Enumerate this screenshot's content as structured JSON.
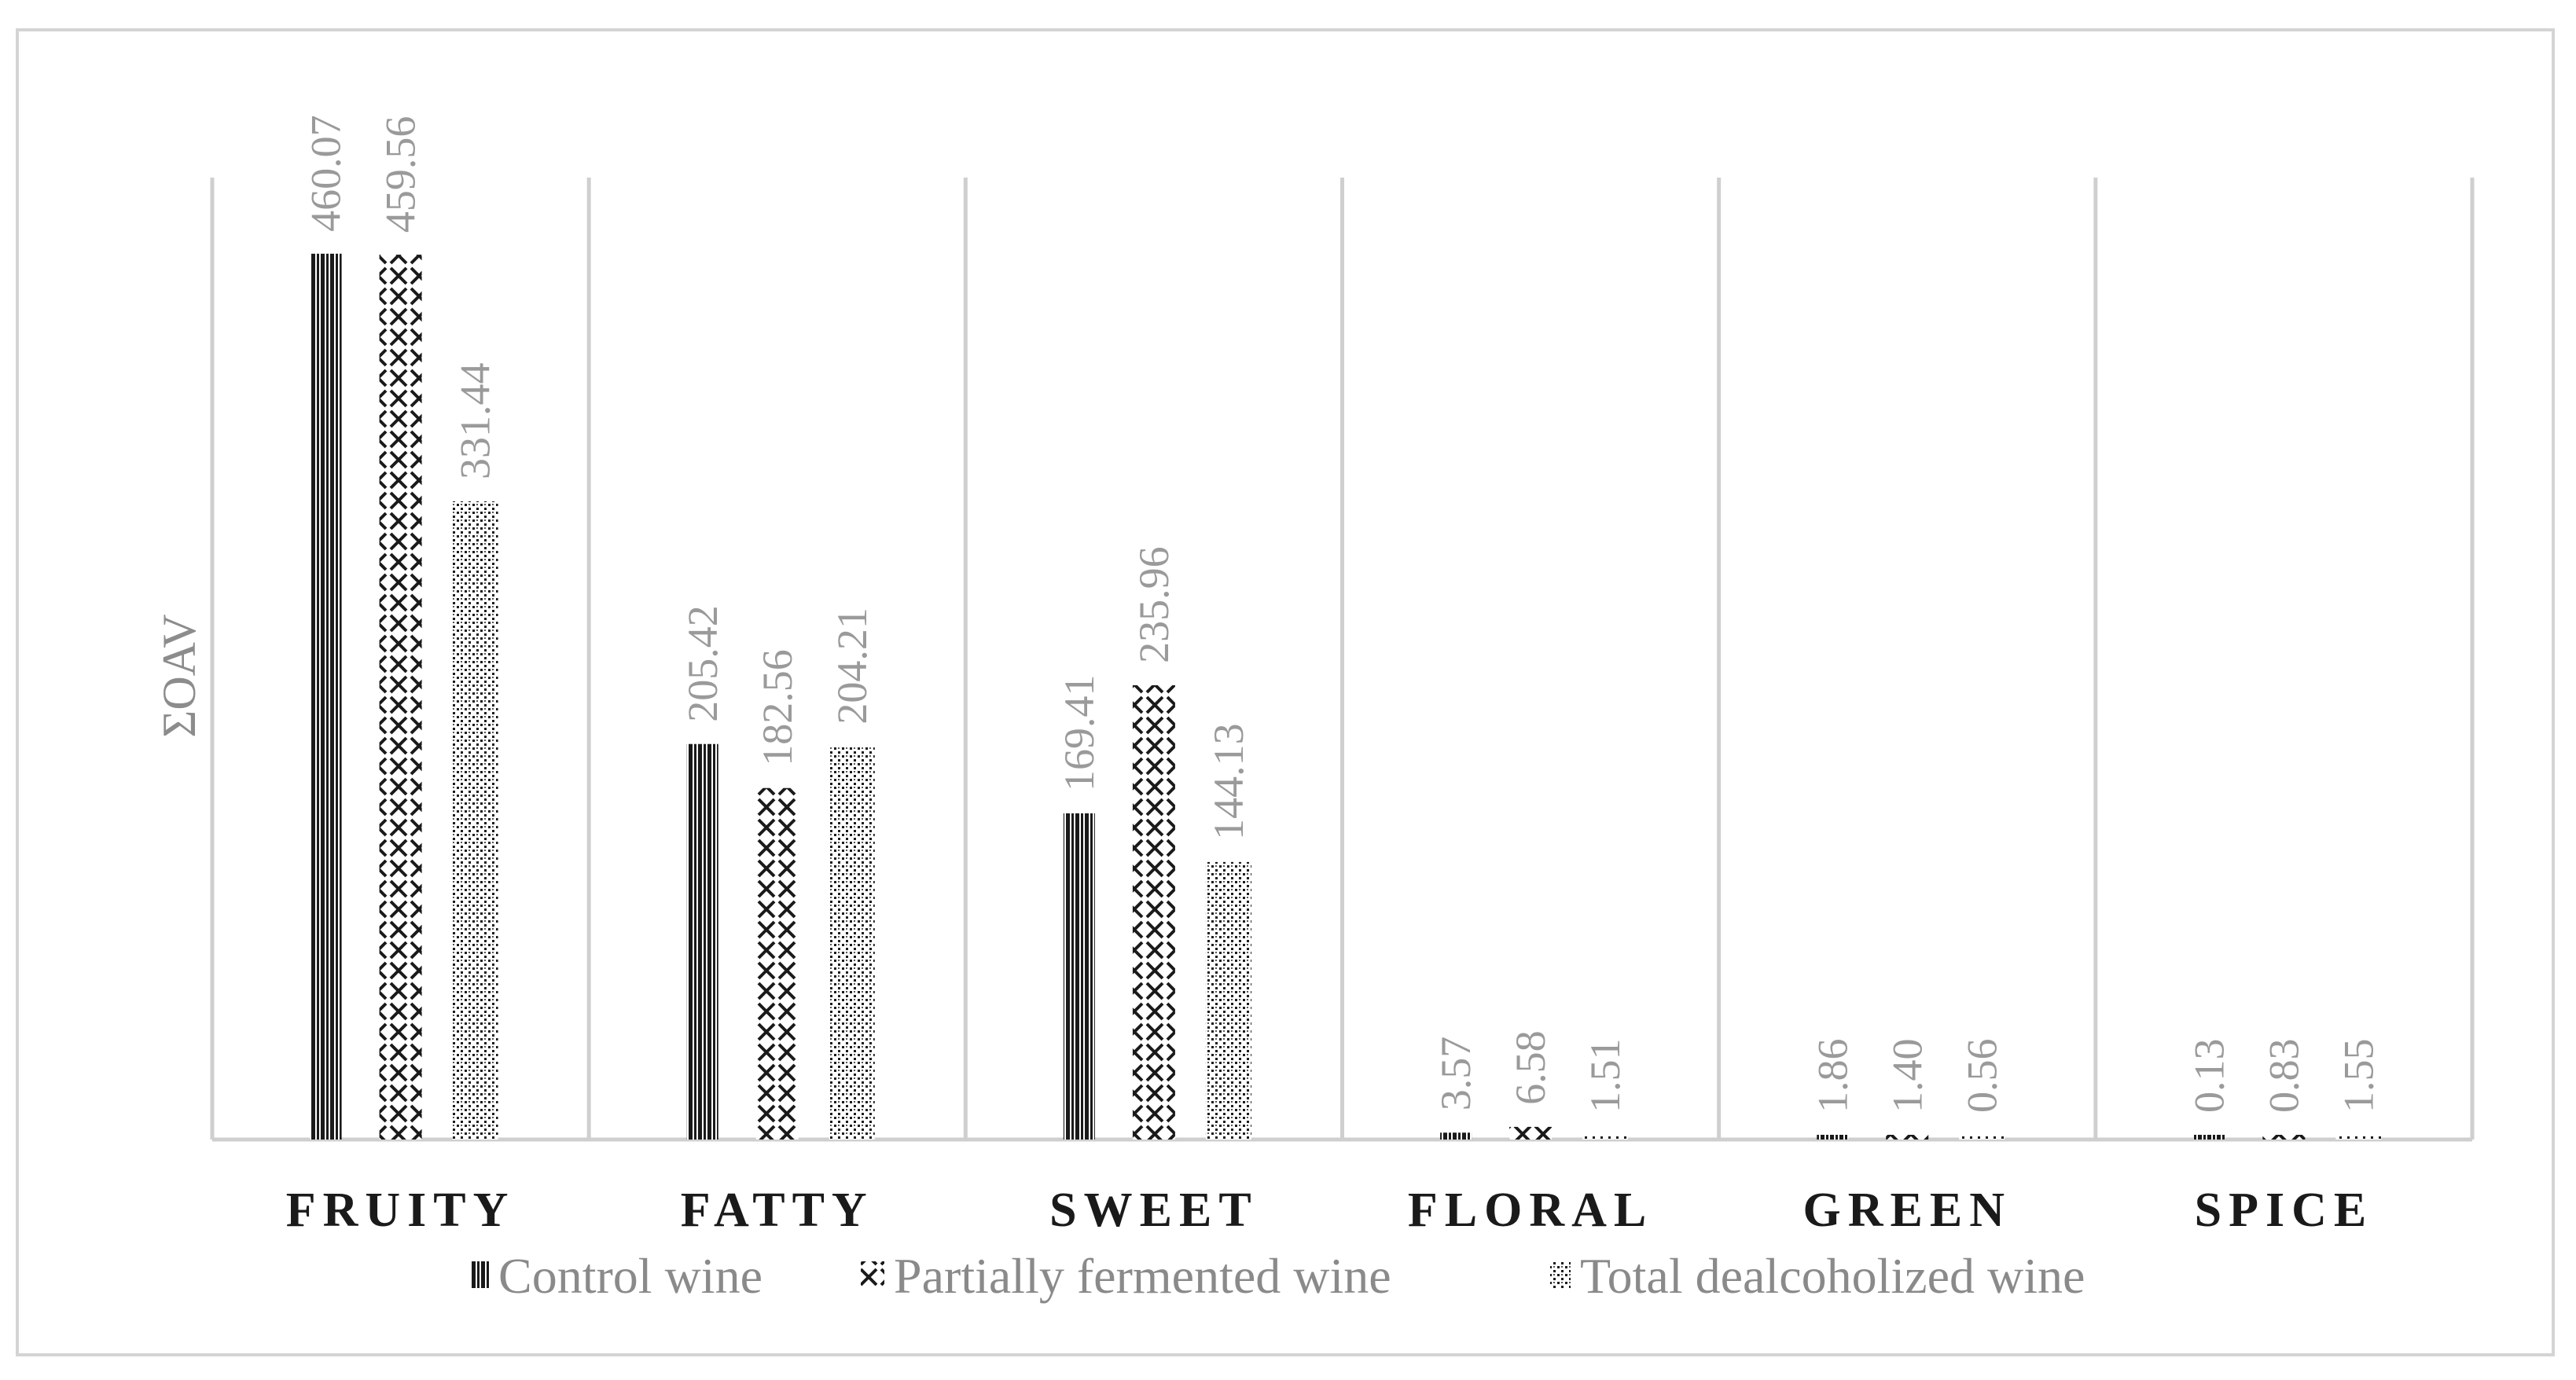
{
  "chart_data": {
    "type": "bar",
    "ylabel": "ΣOAV",
    "xlabel": "",
    "title": "",
    "categories": [
      "FRUITY",
      "FATTY",
      "SWEET",
      "FLORAL",
      "GREEN",
      "SPICE"
    ],
    "series": [
      {
        "name": "Control wine",
        "values": [
          460.07,
          205.42,
          169.41,
          3.57,
          1.86,
          0.13
        ],
        "labels": [
          "460.07",
          "205.42",
          "169.41",
          "3.57",
          "1.86",
          "0.13"
        ],
        "pattern": "vertical-stripes"
      },
      {
        "name": "Partially fermented wine",
        "values": [
          459.56,
          182.56,
          235.96,
          6.58,
          1.4,
          0.83
        ],
        "labels": [
          "459.56",
          "182.56",
          "235.96",
          "6.58",
          "1.40",
          "0.83"
        ],
        "pattern": "crosses"
      },
      {
        "name": "Total dealcoholized wine",
        "values": [
          331.44,
          204.21,
          144.13,
          1.51,
          0.56,
          1.55
        ],
        "labels": [
          "331.44",
          "204.21",
          "144.13",
          "1.51",
          "0.56",
          "1.55"
        ],
        "pattern": "dots"
      }
    ],
    "ylim": [
      0,
      500
    ],
    "grid": "vertical category separators",
    "legend": "bottom",
    "colors": {
      "bars": "#1a1a1a",
      "labels": "#9a9a9a",
      "frame": "#d4d4d4",
      "separator": "#cfcfcf"
    }
  }
}
